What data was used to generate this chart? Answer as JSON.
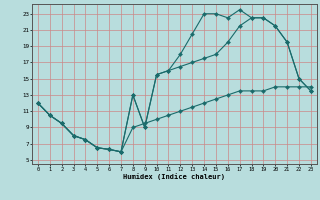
{
  "xlabel": "Humidex (Indice chaleur)",
  "bg_color": "#b8dddd",
  "grid_color": "#cc8888",
  "line_color": "#1a6b6b",
  "line1_x": [
    0,
    1,
    2,
    3,
    4,
    5,
    6,
    7,
    8,
    9,
    10,
    11,
    12,
    13,
    14,
    15,
    16,
    17,
    18,
    19,
    20,
    21,
    22,
    23
  ],
  "line1_y": [
    12,
    10.5,
    9.5,
    8,
    7.5,
    6.5,
    6.3,
    6.0,
    13.0,
    9.0,
    15.5,
    16.0,
    18.0,
    20.5,
    23.0,
    23.0,
    22.5,
    23.5,
    22.5,
    22.5,
    21.5,
    19.5,
    15.0,
    13.5
  ],
  "line2_x": [
    0,
    1,
    2,
    3,
    4,
    5,
    6,
    7,
    8,
    9,
    10,
    11,
    12,
    13,
    14,
    15,
    16,
    17,
    18,
    19,
    20,
    21,
    22,
    23
  ],
  "line2_y": [
    12,
    10.5,
    9.5,
    8,
    7.5,
    6.5,
    6.3,
    6.0,
    13.0,
    9.0,
    15.5,
    16.0,
    16.5,
    17.0,
    17.5,
    18.0,
    19.5,
    21.5,
    22.5,
    22.5,
    21.5,
    19.5,
    15.0,
    13.5
  ],
  "line3_x": [
    0,
    1,
    2,
    3,
    4,
    5,
    6,
    7,
    8,
    9,
    10,
    11,
    12,
    13,
    14,
    15,
    16,
    17,
    18,
    19,
    20,
    21,
    22,
    23
  ],
  "line3_y": [
    12,
    10.5,
    9.5,
    8,
    7.5,
    6.5,
    6.3,
    6.0,
    9.0,
    9.5,
    10.0,
    10.5,
    11.0,
    11.5,
    12.0,
    12.5,
    13.0,
    13.5,
    13.5,
    13.5,
    14.0,
    14.0,
    14.0,
    14.0
  ],
  "xlim": [
    -0.5,
    23.5
  ],
  "ylim": [
    4.5,
    24.2
  ],
  "yticks": [
    5,
    7,
    9,
    11,
    13,
    15,
    17,
    19,
    21,
    23
  ],
  "xticks": [
    0,
    1,
    2,
    3,
    4,
    5,
    6,
    7,
    8,
    9,
    10,
    11,
    12,
    13,
    14,
    15,
    16,
    17,
    18,
    19,
    20,
    21,
    22,
    23
  ]
}
